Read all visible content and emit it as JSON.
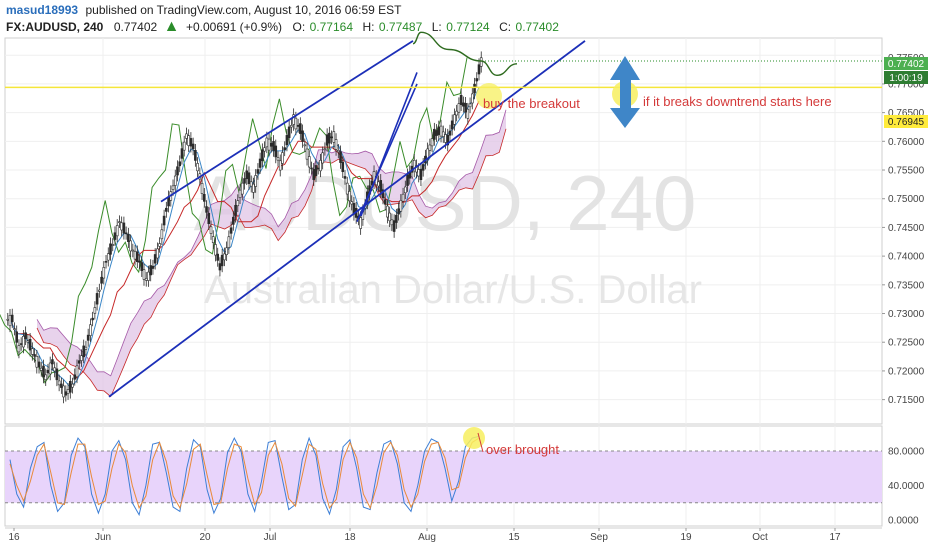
{
  "header": {
    "publisher_user": "masud18993",
    "published_text": "published on TradingView.com, August 10, 2016 06:59 EST",
    "symbol": "FX:AUDUSD, 240",
    "last": "0.77402",
    "change": "+0.00691 (+0.9%)",
    "open_label": "O:",
    "open": "0.77164",
    "high_label": "H:",
    "high": "0.77487",
    "low_label": "L:",
    "low": "0.77124",
    "close_label": "C:",
    "close": "0.77402"
  },
  "watermark": {
    "line1": "AUDUSD, 240",
    "line2": "Australian Dollar/U.S. Dollar"
  },
  "annotations": {
    "buy": "buy the breakout",
    "downtrend": "if it breaks downtrend starts here",
    "overbought": "over brought"
  },
  "price_badges": {
    "last": "0.77402",
    "countdown": "1:00:19",
    "level": "0.76945",
    "top_partial": "0.77500"
  },
  "colors": {
    "channel": "#1c2fb8",
    "yellow_line": "#f5e63a",
    "candle_up": "#2a2a2a",
    "green_line": "#3a8c2a",
    "red_line": "#c62828",
    "blue_line": "#3b87c8",
    "cloud": "#e0c4e6",
    "stoch_k": "#3d7fd6",
    "stoch_d": "#e98a3a",
    "stoch_band": "#e8d4fb",
    "arrow": "#3f86c8",
    "badge_green": "#4caf50",
    "badge_dark": "#2e7d32",
    "badge_yellow": "#ffeb3b",
    "annotation": "#d43a3a"
  },
  "chart_data": [
    {
      "type": "candlestick",
      "title": "",
      "timeframe": "240",
      "x_ticks": [
        "16",
        "Jun",
        "20",
        "Jul",
        "18",
        "Aug",
        "15",
        "Sep",
        "19",
        "Oct",
        "17"
      ],
      "y_ticks": [
        "0.71500",
        "0.72000",
        "0.72500",
        "0.73000",
        "0.73500",
        "0.74000",
        "0.74500",
        "0.75000",
        "0.75500",
        "0.76000",
        "0.76500",
        "0.77000",
        "0.77500"
      ],
      "ylim": [
        0.711,
        0.778
      ],
      "grid": true,
      "close_series": [
        0.729,
        0.724,
        0.726,
        0.7235,
        0.721,
        0.719,
        0.7215,
        0.718,
        0.716,
        0.7175,
        0.7215,
        0.724,
        0.729,
        0.734,
        0.739,
        0.742,
        0.746,
        0.744,
        0.741,
        0.739,
        0.736,
        0.738,
        0.742,
        0.748,
        0.752,
        0.756,
        0.761,
        0.759,
        0.754,
        0.748,
        0.743,
        0.738,
        0.741,
        0.746,
        0.751,
        0.754,
        0.752,
        0.756,
        0.76,
        0.759,
        0.756,
        0.76,
        0.764,
        0.762,
        0.758,
        0.754,
        0.756,
        0.76,
        0.761,
        0.757,
        0.752,
        0.748,
        0.746,
        0.75,
        0.754,
        0.752,
        0.748,
        0.745,
        0.749,
        0.753,
        0.756,
        0.754,
        0.758,
        0.761,
        0.762,
        0.76,
        0.764,
        0.767,
        0.765,
        0.769,
        0.774
      ],
      "horizontal_level": 0.7694,
      "channel_upper": [
        {
          "date": "Jun 9",
          "price": 0.7495
        },
        {
          "date": "Aug 11",
          "price": 0.7775
        }
      ],
      "channel_lower": [
        {
          "date": "May 27",
          "price": 0.7155
        },
        {
          "date": "Sep 23",
          "price": 0.7775
        }
      ],
      "inner_channel_upper": [
        {
          "date": "Jul 29",
          "price": 0.747
        },
        {
          "date": "Aug 12",
          "price": 0.772
        }
      ],
      "inner_channel_lower": [
        {
          "date": "Jul 28",
          "price": 0.746
        },
        {
          "date": "Aug 12",
          "price": 0.77
        }
      ],
      "projection": [
        {
          "date": "Aug 11",
          "price": 0.777
        },
        {
          "date": "Aug 13",
          "price": 0.779
        },
        {
          "date": "Aug 20",
          "price": 0.776
        },
        {
          "date": "Aug 28",
          "price": 0.774
        },
        {
          "date": "Sep 1",
          "price": 0.7715
        },
        {
          "date": "Sep 6",
          "price": 0.7735
        }
      ]
    },
    {
      "type": "line",
      "title": "",
      "indicator": "stochastic",
      "y_ticks": [
        "0.0000",
        "40.0000",
        "80.0000"
      ],
      "ylim": [
        -6,
        106
      ],
      "levels": [
        20,
        80
      ],
      "series": [
        {
          "values": [
            70,
            30,
            15,
            60,
            85,
            90,
            40,
            10,
            20,
            75,
            95,
            85,
            30,
            8,
            30,
            80,
            92,
            70,
            20,
            6,
            40,
            88,
            90,
            55,
            15,
            10,
            60,
            93,
            85,
            35,
            8,
            25,
            78,
            95,
            80,
            30,
            10,
            45,
            90,
            92,
            50,
            12,
            18,
            70,
            95,
            75,
            25,
            7,
            35,
            85,
            93,
            60,
            15,
            12,
            55,
            88,
            92,
            65,
            20,
            10,
            40,
            80,
            94,
            90,
            60,
            22,
            45,
            85,
            95,
            97
          ]
        },
        {
          "values": [
            65,
            40,
            22,
            45,
            75,
            88,
            55,
            20,
            18,
            55,
            88,
            88,
            50,
            18,
            22,
            60,
            88,
            78,
            40,
            14,
            28,
            70,
            90,
            68,
            28,
            14,
            42,
            82,
            88,
            52,
            18,
            20,
            60,
            88,
            85,
            48,
            18,
            32,
            75,
            90,
            65,
            25,
            16,
            52,
            88,
            82,
            42,
            14,
            24,
            70,
            90,
            72,
            30,
            14,
            40,
            78,
            90,
            75,
            35,
            15,
            30,
            68,
            88,
            90,
            72,
            35,
            38,
            72,
            90,
            95
          ]
        }
      ]
    }
  ]
}
